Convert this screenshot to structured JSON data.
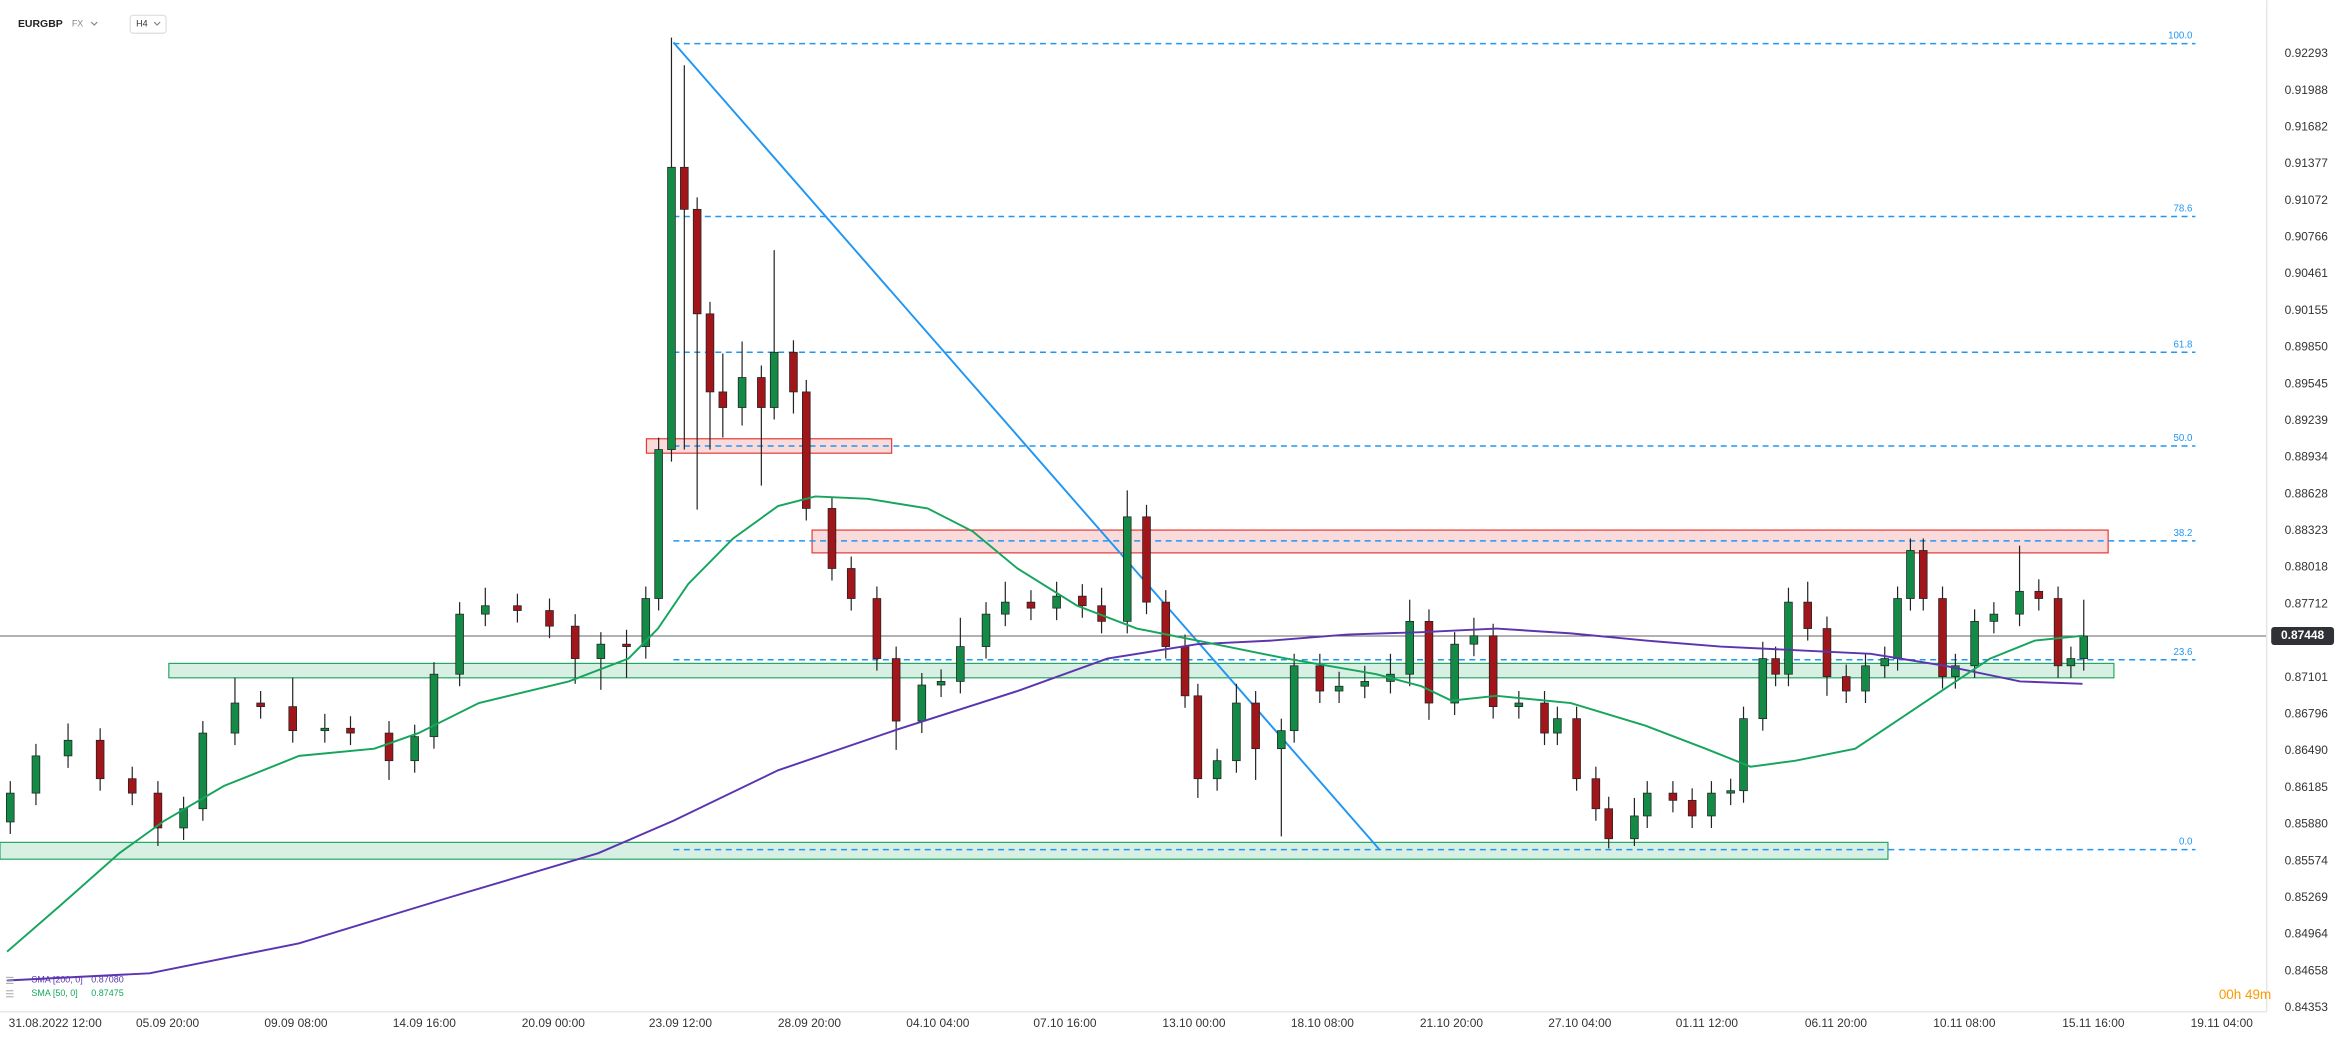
{
  "chart_data": {
    "type": "candlestick",
    "symbol": "EURGBP",
    "market": "FX",
    "interval": "H4",
    "countdown": "00h 49m",
    "x": [
      -7,
      -3,
      2,
      7,
      12,
      16,
      20,
      23,
      28,
      32,
      37,
      42,
      46,
      52,
      56,
      59,
      63,
      67,
      72,
      77,
      81,
      85,
      89,
      92,
      94,
      96,
      98,
      100,
      102,
      104,
      107,
      110,
      112,
      115,
      117,
      121,
      124,
      128,
      131,
      135,
      138,
      141,
      145,
      148,
      152,
      156,
      160,
      163,
      167,
      170,
      173,
      176,
      178,
      181,
      184,
      187,
      191,
      193,
      197,
      200,
      204,
      208,
      211,
      214,
      218,
      221,
      224,
      228,
      232,
      234,
      237,
      240,
      242,
      246,
      248,
      252,
      255,
      258,
      261,
      263,
      266,
      268,
      270,
      273,
      276,
      279,
      282,
      285,
      287,
      289,
      291,
      294,
      296,
      299,
      302,
      306,
      309,
      312,
      314,
      316
    ],
    "open": [
      0.859,
      0.8614,
      0.8645,
      0.8658,
      0.8626,
      0.8614,
      0.8585,
      0.8601,
      0.8664,
      0.8689,
      0.8686,
      0.8666,
      0.8668,
      0.8664,
      0.8641,
      0.8661,
      0.8713,
      0.8763,
      0.877,
      0.8766,
      0.8753,
      0.8726,
      0.8738,
      0.8736,
      0.8776,
      0.89,
      0.9135,
      0.91,
      0.9013,
      0.8948,
      0.8935,
      0.896,
      0.8935,
      0.8981,
      0.8948,
      0.8851,
      0.8801,
      0.8776,
      0.8726,
      0.8674,
      0.8704,
      0.8707,
      0.8736,
      0.8763,
      0.8773,
      0.8768,
      0.8778,
      0.877,
      0.8757,
      0.8844,
      0.8773,
      0.8736,
      0.8695,
      0.8626,
      0.8641,
      0.8689,
      0.8651,
      0.8666,
      0.872,
      0.8699,
      0.8703,
      0.8707,
      0.8713,
      0.8757,
      0.8689,
      0.8738,
      0.8745,
      0.8686,
      0.8689,
      0.8664,
      0.8676,
      0.8626,
      0.8601,
      0.8576,
      0.8595,
      0.8614,
      0.8608,
      0.8595,
      0.8614,
      0.8616,
      0.8676,
      0.8726,
      0.8713,
      0.8773,
      0.8751,
      0.8711,
      0.8699,
      0.872,
      0.8726,
      0.8776,
      0.8816,
      0.8776,
      0.8711,
      0.872,
      0.8757,
      0.8763,
      0.8782,
      0.8776,
      0.872,
      0.8726
    ],
    "high": [
      0.8624,
      0.8655,
      0.8672,
      0.8668,
      0.8636,
      0.8624,
      0.8611,
      0.8674,
      0.871,
      0.8699,
      0.871,
      0.868,
      0.8678,
      0.8674,
      0.8671,
      0.8723,
      0.8773,
      0.8785,
      0.878,
      0.8776,
      0.8763,
      0.8748,
      0.875,
      0.8786,
      0.891,
      0.9243,
      0.922,
      0.911,
      0.9023,
      0.898,
      0.899,
      0.897,
      0.9066,
      0.8991,
      0.8958,
      0.8861,
      0.8811,
      0.8786,
      0.8736,
      0.8714,
      0.8717,
      0.876,
      0.8773,
      0.879,
      0.8783,
      0.879,
      0.8788,
      0.8785,
      0.8866,
      0.8854,
      0.8783,
      0.8746,
      0.8705,
      0.8651,
      0.8705,
      0.8699,
      0.8676,
      0.873,
      0.873,
      0.8715,
      0.872,
      0.873,
      0.8775,
      0.8767,
      0.8748,
      0.876,
      0.8755,
      0.8699,
      0.8699,
      0.8686,
      0.8686,
      0.8636,
      0.8611,
      0.861,
      0.8624,
      0.8624,
      0.8618,
      0.8624,
      0.8626,
      0.8686,
      0.874,
      0.8736,
      0.8785,
      0.879,
      0.8761,
      0.8721,
      0.873,
      0.8736,
      0.8786,
      0.8826,
      0.8826,
      0.8786,
      0.873,
      0.8767,
      0.8773,
      0.882,
      0.8792,
      0.8786,
      0.8736,
      0.8775
    ],
    "low": [
      0.858,
      0.8604,
      0.8635,
      0.8616,
      0.8604,
      0.857,
      0.8575,
      0.8591,
      0.8654,
      0.8676,
      0.8656,
      0.8656,
      0.8654,
      0.8625,
      0.8631,
      0.8651,
      0.8703,
      0.8753,
      0.8756,
      0.8743,
      0.8705,
      0.87,
      0.871,
      0.8726,
      0.8766,
      0.889,
      0.89,
      0.885,
      0.89,
      0.891,
      0.892,
      0.887,
      0.8925,
      0.893,
      0.8841,
      0.8791,
      0.8766,
      0.8716,
      0.865,
      0.8664,
      0.8694,
      0.8697,
      0.8726,
      0.8753,
      0.8758,
      0.8758,
      0.876,
      0.8747,
      0.8747,
      0.8763,
      0.8726,
      0.8685,
      0.861,
      0.8616,
      0.8631,
      0.8625,
      0.8578,
      0.8656,
      0.8689,
      0.8689,
      0.8693,
      0.8697,
      0.8703,
      0.8675,
      0.8679,
      0.8728,
      0.8676,
      0.8676,
      0.8654,
      0.8654,
      0.8616,
      0.8591,
      0.8568,
      0.857,
      0.8585,
      0.8598,
      0.8585,
      0.8585,
      0.8604,
      0.8606,
      0.8666,
      0.8703,
      0.8703,
      0.8741,
      0.8695,
      0.8689,
      0.8689,
      0.871,
      0.8716,
      0.8766,
      0.8766,
      0.8701,
      0.8701,
      0.871,
      0.8747,
      0.8753,
      0.8766,
      0.871,
      0.871,
      0.8716
    ],
    "close": [
      0.8614,
      0.8645,
      0.8658,
      0.8626,
      0.8614,
      0.8585,
      0.8601,
      0.8664,
      0.8689,
      0.8686,
      0.8666,
      0.8668,
      0.8664,
      0.8641,
      0.8661,
      0.8713,
      0.8763,
      0.877,
      0.8766,
      0.8753,
      0.8726,
      0.8738,
      0.8736,
      0.8776,
      0.89,
      0.9135,
      0.91,
      0.9013,
      0.8948,
      0.8935,
      0.896,
      0.8935,
      0.8981,
      0.8948,
      0.8851,
      0.8801,
      0.8776,
      0.8726,
      0.8674,
      0.8704,
      0.8707,
      0.8736,
      0.8763,
      0.8773,
      0.8768,
      0.8778,
      0.877,
      0.8757,
      0.8844,
      0.8773,
      0.8736,
      0.8695,
      0.8626,
      0.8641,
      0.8689,
      0.8651,
      0.8666,
      0.872,
      0.8699,
      0.8703,
      0.8707,
      0.8713,
      0.8757,
      0.8689,
      0.8738,
      0.8745,
      0.8686,
      0.8689,
      0.8664,
      0.8676,
      0.8626,
      0.8601,
      0.8576,
      0.8595,
      0.8614,
      0.8608,
      0.8595,
      0.8614,
      0.8616,
      0.8676,
      0.8726,
      0.8713,
      0.8773,
      0.8751,
      0.8711,
      0.8699,
      0.872,
      0.8726,
      0.8776,
      0.8816,
      0.8776,
      0.8711,
      0.872,
      0.8757,
      0.8763,
      0.8782,
      0.8776,
      0.872,
      0.8726,
      0.87448
    ],
    "up_color": "#138a45",
    "down_color": "#a0161b",
    "series": [
      {
        "name": "SMA [200, 0]",
        "value_label": "0.87080",
        "color": "#5b35b0",
        "x": [
          -7.5,
          14.7,
          38.0,
          61.3,
          84.6,
          96.3,
          112.6,
          131.2,
          149.9,
          163.9,
          177.9,
          189.5,
          201.2,
          212.8,
          224.5,
          236.1,
          247.8,
          259.4,
          271.1,
          282.8,
          294.4,
          306.1,
          315.8
        ],
        "values": [
          0.8458,
          0.8464,
          0.8489,
          0.8527,
          0.8564,
          0.8591,
          0.8633,
          0.8667,
          0.8699,
          0.8726,
          0.8738,
          0.8741,
          0.8746,
          0.8748,
          0.8751,
          0.8747,
          0.8741,
          0.8736,
          0.8733,
          0.873,
          0.872,
          0.8707,
          0.8705
        ]
      },
      {
        "name": "SMA [50, 0]",
        "value_label": "0.87475",
        "color": "#16a55d",
        "x": [
          -7.5,
          0.7,
          10.0,
          17.0,
          26.3,
          38.0,
          49.7,
          56.6,
          66.0,
          80.0,
          89.3,
          93.9,
          98.6,
          105.6,
          112.6,
          118.4,
          126.6,
          135.9,
          142.9,
          149.9,
          159.2,
          168.5,
          177.9,
          191.8,
          205.8,
          212.8,
          217.5,
          224.5,
          236.1,
          247.8,
          257.1,
          264.1,
          271.1,
          280.4,
          287.4,
          294.4,
          301.4,
          308.4,
          315.8
        ],
        "values": [
          0.8482,
          0.852,
          0.8564,
          0.8591,
          0.862,
          0.8645,
          0.8651,
          0.8664,
          0.8689,
          0.8707,
          0.8726,
          0.8751,
          0.8788,
          0.8826,
          0.8853,
          0.8861,
          0.8859,
          0.8851,
          0.8832,
          0.8801,
          0.877,
          0.8751,
          0.8741,
          0.8726,
          0.8713,
          0.8703,
          0.8691,
          0.8695,
          0.8689,
          0.867,
          0.8651,
          0.8636,
          0.8641,
          0.8651,
          0.8676,
          0.8701,
          0.8726,
          0.8741,
          0.8745
        ]
      }
    ],
    "fib_color": "#2196f3",
    "fib_x": [
      96.3,
      333.4
    ],
    "fib_levels": [
      {
        "level": "100.0",
        "price": 0.9238
      },
      {
        "level": "78.6",
        "price": 0.9094
      },
      {
        "level": "61.8",
        "price": 0.8981
      },
      {
        "level": "50.0",
        "price": 0.8903
      },
      {
        "level": "38.2",
        "price": 0.8824
      },
      {
        "level": "23.6",
        "price": 0.8725
      },
      {
        "level": "0.0",
        "price": 0.8567
      }
    ],
    "trendline": {
      "color": "#2196f3",
      "x": [
        96.3,
        206.3
      ],
      "values": [
        0.9239,
        0.8567
      ]
    },
    "zones": [
      {
        "color": "#e53935",
        "x": [
          92.1,
          130.3
        ],
        "values": [
          0.8909,
          0.8897
        ]
      },
      {
        "color": "#e53935",
        "x": [
          117.9,
          319.8
        ],
        "values": [
          0.8833,
          0.8814
        ]
      },
      {
        "color": "#25a764",
        "x": [
          17.7,
          320.7
        ],
        "values": [
          0.8722,
          0.871
        ]
      },
      {
        "color": "#25a764",
        "x": [
          -8.6,
          285.5
        ],
        "values": [
          0.8573,
          0.8559
        ]
      }
    ],
    "last_price": 0.87448,
    "xlim": [
      -8.6,
      344.5
    ],
    "ylim": [
      0.8432,
      0.9274
    ],
    "xticks": [
      {
        "value": 0,
        "label": "31.08.2022  12:00"
      },
      {
        "value": 17.5,
        "label": "05.09  20:00"
      },
      {
        "value": 37.5,
        "label": "09.09  08:00"
      },
      {
        "value": 57.5,
        "label": "14.09  16:00"
      },
      {
        "value": 77.6,
        "label": "20.09  00:00"
      },
      {
        "value": 97.4,
        "label": "23.09  12:00"
      },
      {
        "value": 117.5,
        "label": "28.09  20:00"
      },
      {
        "value": 137.5,
        "label": "04.10  04:00"
      },
      {
        "value": 157.3,
        "label": "07.10  16:00"
      },
      {
        "value": 177.4,
        "label": "13.10  00:00"
      },
      {
        "value": 197.4,
        "label": "18.10  08:00"
      },
      {
        "value": 217.5,
        "label": "21.10  20:00"
      },
      {
        "value": 237.5,
        "label": "27.10  04:00"
      },
      {
        "value": 257.3,
        "label": "01.11  12:00"
      },
      {
        "value": 277.4,
        "label": "06.11  20:00"
      },
      {
        "value": 297.4,
        "label": "10.11  08:00"
      },
      {
        "value": 317.5,
        "label": "15.11  16:00"
      },
      {
        "value": 337.5,
        "label": "19.11  04:00"
      }
    ],
    "yticks": [
      0.92293,
      0.91988,
      0.91682,
      0.91377,
      0.91072,
      0.90766,
      0.90461,
      0.90155,
      {
        "value": 0.8985,
        "label": "0.89850"
      },
      0.89545,
      0.89239,
      0.88934,
      0.88628,
      0.88323,
      0.88018,
      0.87712,
      0.87101,
      0.86796,
      {
        "value": 0.8649,
        "label": "0.86490"
      },
      0.86185,
      {
        "value": 0.8588,
        "label": "0.85880"
      },
      0.85574,
      0.85269,
      0.84964,
      0.84658,
      0.84353
    ]
  }
}
